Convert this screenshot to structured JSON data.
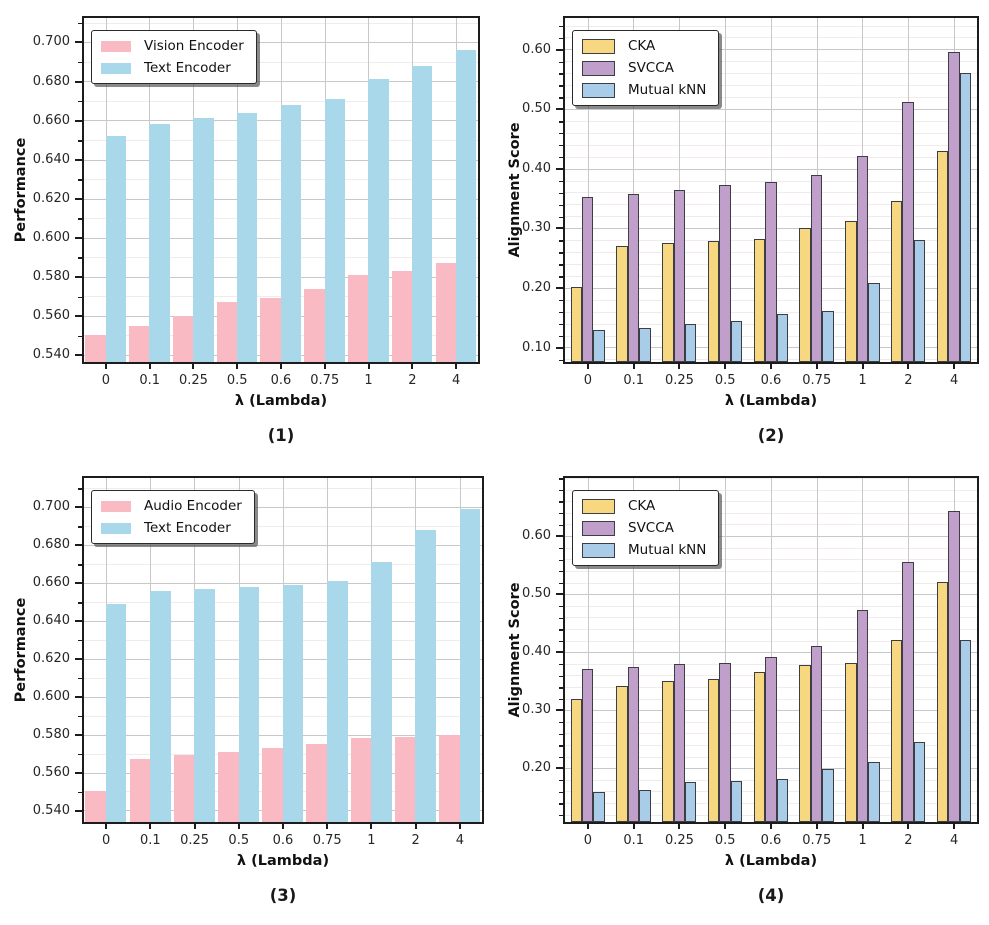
{
  "figure": {
    "background": "#ffffff",
    "panel_captions": [
      "(1)",
      "(2)",
      "(3)",
      "(4)"
    ]
  },
  "colors": {
    "pink": "#f9bac3",
    "encoder_blue": "#a8d8ea",
    "yellow": "#f7d880",
    "purple": "#c0a0cb",
    "metric_blue": "#a9cce8",
    "bar_edge": "#3d3d44",
    "axis": "#1c1c1c",
    "grid_major": "#c8c8c8",
    "grid_minor": "#f2ebeb",
    "text": "#262626"
  },
  "chart_data": [
    {
      "type": "bar",
      "caption": "(1)",
      "xlabel": "λ (Lambda)",
      "ylabel": "Performance",
      "categories": [
        "0",
        "0.1",
        "0.25",
        "0.5",
        "0.6",
        "0.75",
        "1",
        "2",
        "4"
      ],
      "yticks": [
        0.54,
        0.56,
        0.58,
        0.6,
        0.62,
        0.64,
        0.66,
        0.68,
        0.7
      ],
      "ytick_labels": [
        "0.540",
        "0.560",
        "0.580",
        "0.600",
        "0.620",
        "0.640",
        "0.660",
        "0.680",
        "0.700"
      ],
      "ylim": [
        0.5365,
        0.7125
      ],
      "minor_step": 0.01,
      "grid": true,
      "bar_outline": false,
      "legend_loc": "upper left",
      "series": [
        {
          "name": "Vision Encoder",
          "color": "pink",
          "values": [
            0.55,
            0.555,
            0.56,
            0.567,
            0.569,
            0.574,
            0.581,
            0.583,
            0.587
          ]
        },
        {
          "name": "Text Encoder",
          "color": "encoder_blue",
          "values": [
            0.652,
            0.658,
            0.661,
            0.664,
            0.668,
            0.671,
            0.681,
            0.688,
            0.696
          ]
        }
      ]
    },
    {
      "type": "bar",
      "caption": "(2)",
      "xlabel": "λ (Lambda)",
      "ylabel": "Alignment Score",
      "categories": [
        "0",
        "0.1",
        "0.25",
        "0.5",
        "0.6",
        "0.75",
        "1",
        "2",
        "4"
      ],
      "yticks": [
        0.1,
        0.2,
        0.3,
        0.4,
        0.5,
        0.6
      ],
      "ytick_labels": [
        "0.10",
        "0.20",
        "0.30",
        "0.40",
        "0.50",
        "0.60"
      ],
      "ylim": [
        0.076,
        0.653
      ],
      "minor_step": 0.02,
      "grid": true,
      "bar_outline": true,
      "legend_loc": "upper left",
      "series": [
        {
          "name": "CKA",
          "color": "yellow",
          "values": [
            0.201,
            0.271,
            0.276,
            0.278,
            0.282,
            0.3,
            0.313,
            0.345,
            0.43
          ]
        },
        {
          "name": "SVCCA",
          "color": "purple",
          "values": [
            0.353,
            0.358,
            0.364,
            0.372,
            0.378,
            0.389,
            0.421,
            0.512,
            0.596
          ]
        },
        {
          "name": "Mutual kNN",
          "color": "metric_blue",
          "values": [
            0.13,
            0.132,
            0.14,
            0.145,
            0.156,
            0.161,
            0.208,
            0.281,
            0.56
          ]
        }
      ]
    },
    {
      "type": "bar",
      "caption": "(3)",
      "xlabel": "λ (Lambda)",
      "ylabel": "Performance",
      "categories": [
        "0",
        "0.1",
        "0.25",
        "0.5",
        "0.6",
        "0.75",
        "1",
        "2",
        "4"
      ],
      "yticks": [
        0.54,
        0.56,
        0.58,
        0.6,
        0.62,
        0.64,
        0.66,
        0.68,
        0.7
      ],
      "ytick_labels": [
        "0.540",
        "0.560",
        "0.580",
        "0.600",
        "0.620",
        "0.640",
        "0.660",
        "0.680",
        "0.700"
      ],
      "ylim": [
        0.534,
        0.7155
      ],
      "minor_step": 0.01,
      "grid": true,
      "bar_outline": false,
      "legend_loc": "upper left",
      "series": [
        {
          "name": "Audio Encoder",
          "color": "pink",
          "values": [
            0.55,
            0.567,
            0.569,
            0.571,
            0.573,
            0.575,
            0.578,
            0.579,
            0.58
          ]
        },
        {
          "name": "Text Encoder",
          "color": "encoder_blue",
          "values": [
            0.649,
            0.656,
            0.657,
            0.658,
            0.659,
            0.661,
            0.671,
            0.688,
            0.699
          ]
        }
      ]
    },
    {
      "type": "bar",
      "caption": "(4)",
      "xlabel": "λ (Lambda)",
      "ylabel": "Alignment Score",
      "categories": [
        "0",
        "0.1",
        "0.25",
        "0.5",
        "0.6",
        "0.75",
        "1",
        "2",
        "4"
      ],
      "yticks": [
        0.2,
        0.3,
        0.4,
        0.5,
        0.6
      ],
      "ytick_labels": [
        "0.20",
        "0.30",
        "0.40",
        "0.50",
        "0.60"
      ],
      "ylim": [
        0.1075,
        0.7005
      ],
      "minor_step": 0.02,
      "grid": true,
      "bar_outline": true,
      "legend_loc": "upper left",
      "series": [
        {
          "name": "CKA",
          "color": "yellow",
          "values": [
            0.32,
            0.341,
            0.35,
            0.354,
            0.365,
            0.378,
            0.381,
            0.421,
            0.521
          ]
        },
        {
          "name": "SVCCA",
          "color": "purple",
          "values": [
            0.371,
            0.374,
            0.38,
            0.382,
            0.392,
            0.41,
            0.472,
            0.556,
            0.644
          ]
        },
        {
          "name": "Mutual kNN",
          "color": "metric_blue",
          "values": [
            0.159,
            0.163,
            0.176,
            0.177,
            0.181,
            0.198,
            0.21,
            0.245,
            0.421
          ]
        }
      ]
    }
  ]
}
